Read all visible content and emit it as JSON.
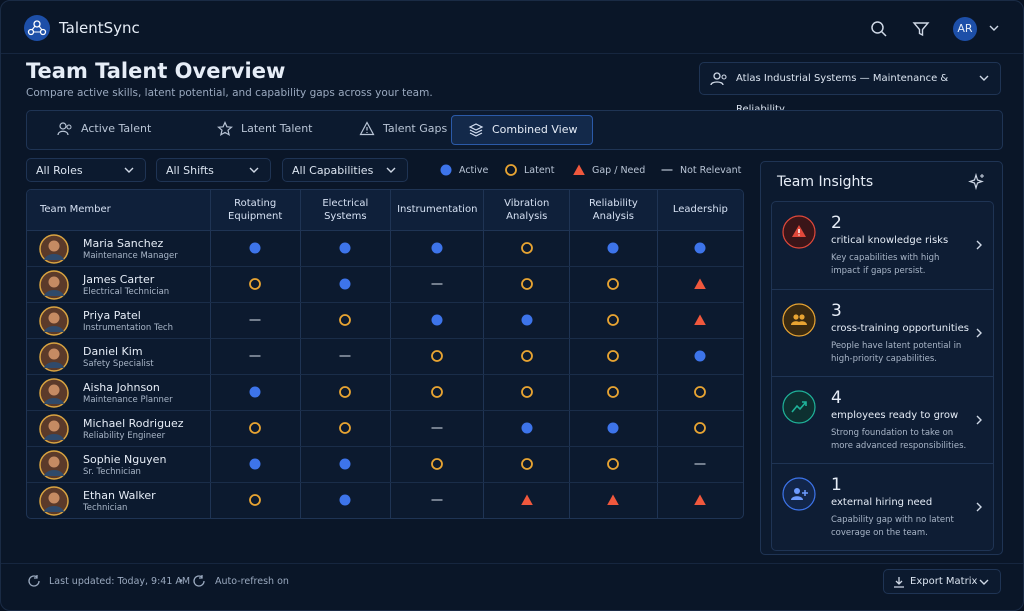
{
  "app": {
    "name": "TalentSync",
    "avatar": "AR"
  },
  "header": {
    "title": "Team Talent Overview",
    "subtitle": "Compare active skills, latent potential, and capability gaps across your team.",
    "org": "Atlas Industrial Systems — Maintenance & Reliability"
  },
  "tabs": [
    {
      "label": "Active Talent",
      "selected": false
    },
    {
      "label": "Latent Talent",
      "selected": false
    },
    {
      "label": "Talent Gaps",
      "selected": false
    },
    {
      "label": "Combined View",
      "selected": true
    }
  ],
  "filters": [
    "All Roles",
    "All Shifts",
    "All Capabilities"
  ],
  "legend": [
    {
      "key": "active",
      "label": "Active"
    },
    {
      "key": "latent",
      "label": "Latent"
    },
    {
      "key": "gap",
      "label": "Gap / Need"
    },
    {
      "key": "none",
      "label": "Not Relevant"
    }
  ],
  "table": {
    "member_header": "Team Member",
    "columns": [
      "Rotating Equipment",
      "Electrical Systems",
      "Instrumentation",
      "Vibration Analysis",
      "Reliability Analysis",
      "Leadership"
    ],
    "rows": [
      {
        "name": "Maria Sanchez",
        "role": "Maintenance Manager",
        "cells": [
          "active",
          "active",
          "active",
          "latent",
          "active",
          "active"
        ]
      },
      {
        "name": "James Carter",
        "role": "Electrical Technician",
        "cells": [
          "latent",
          "active",
          "none",
          "latent",
          "latent",
          "gap"
        ]
      },
      {
        "name": "Priya Patel",
        "role": "Instrumentation Tech",
        "cells": [
          "none",
          "latent",
          "active",
          "active",
          "latent",
          "gap"
        ]
      },
      {
        "name": "Daniel Kim",
        "role": "Safety Specialist",
        "cells": [
          "none",
          "none",
          "latent",
          "latent",
          "latent",
          "active"
        ]
      },
      {
        "name": "Aisha Johnson",
        "role": "Maintenance Planner",
        "cells": [
          "active",
          "latent",
          "latent",
          "latent",
          "latent",
          "latent"
        ]
      },
      {
        "name": "Michael Rodriguez",
        "role": "Reliability Engineer",
        "cells": [
          "latent",
          "latent",
          "none",
          "active",
          "active",
          "latent"
        ]
      },
      {
        "name": "Sophie Nguyen",
        "role": "Sr. Technician",
        "cells": [
          "active",
          "active",
          "latent",
          "latent",
          "latent",
          "none"
        ]
      },
      {
        "name": "Ethan Walker",
        "role": "Technician",
        "cells": [
          "latent",
          "active",
          "none",
          "gap",
          "gap",
          "gap"
        ]
      }
    ]
  },
  "insights": {
    "title": "Team Insights",
    "items": [
      {
        "count": 2,
        "title": "critical knowledge risks",
        "description": "Key capabilities with high impact if gaps persist."
      },
      {
        "count": 3,
        "title": "cross-training opportunities",
        "description": "People have latent potential in high-priority capabilities."
      },
      {
        "count": 4,
        "title": "employees ready to grow",
        "description": "Strong foundation to take on more advanced responsibilities."
      },
      {
        "count": 1,
        "title": "external hiring need",
        "description": "Capability gap with no latent coverage on the team."
      }
    ]
  },
  "footer": {
    "updated": "Last updated: Today, 9:41 AM",
    "separator": "•",
    "refresh": "Auto-refresh on",
    "export": "Export Matrix"
  }
}
